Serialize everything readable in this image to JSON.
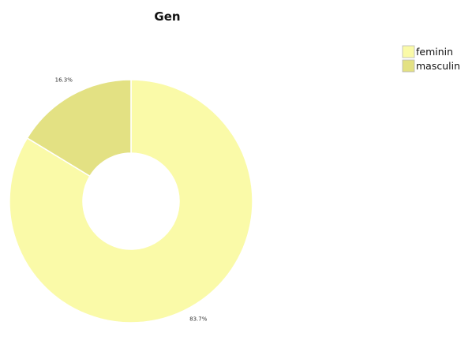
{
  "chart_data": {
    "type": "pie",
    "title": "Gen",
    "slices": [
      {
        "name": "feminin",
        "value": 83.7,
        "label": "83.7%",
        "color": "#fafaa8"
      },
      {
        "name": "masculin",
        "value": 16.3,
        "label": "16.3%",
        "color": "#e3e183"
      }
    ],
    "legend_position": "top-right",
    "donut": true
  }
}
